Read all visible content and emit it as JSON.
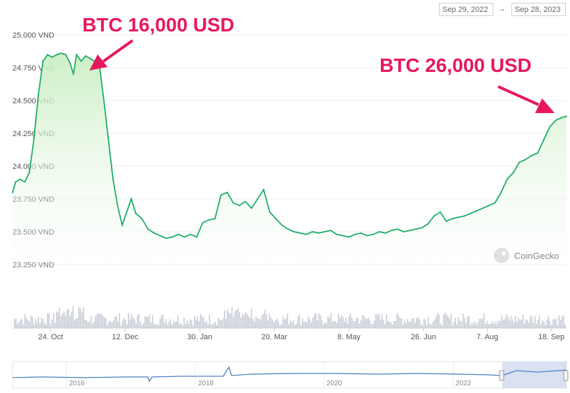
{
  "range": {
    "from": "Sep 29, 2022",
    "arrow": "→",
    "to": "Sep 28, 2023"
  },
  "watermark": "CoinGecko",
  "annotations": [
    {
      "text": "BTC 16,000 USD",
      "color": "#e8175d"
    },
    {
      "text": "BTC 26,000 USD",
      "color": "#e8175d"
    }
  ],
  "navigator": {
    "labels": [
      "2016",
      "2018",
      "2020",
      "2022"
    ]
  },
  "colors": {
    "line": "#1fad6a",
    "area_top": "#c9eec2",
    "volume": "#c9ccd6",
    "navigator_line": "#4a7fc1"
  },
  "chart_data": {
    "type": "area",
    "ylim": [
      23250,
      25000
    ],
    "y_ticks": [
      {
        "value": 25000,
        "label": "25.000 VND"
      },
      {
        "value": 24750,
        "label": "24.750 VND"
      },
      {
        "value": 24500,
        "label": "24.500 VND"
      },
      {
        "value": 24250,
        "label": "24.250 VND"
      },
      {
        "value": 24000,
        "label": "24.000 VND"
      },
      {
        "value": 23750,
        "label": "23.750 VND"
      },
      {
        "value": 23500,
        "label": "23.500 VND"
      },
      {
        "value": 23250,
        "label": "23.250 VND"
      }
    ],
    "x_ticks": [
      {
        "date": "2022-10-24",
        "label": "24. Oct"
      },
      {
        "date": "2022-12-12",
        "label": "12. Dec"
      },
      {
        "date": "2023-01-30",
        "label": "30. Jan"
      },
      {
        "date": "2023-03-20",
        "label": "20. Mar"
      },
      {
        "date": "2023-05-08",
        "label": "8. May"
      },
      {
        "date": "2023-06-26",
        "label": "26. Jun"
      },
      {
        "date": "2023-08-07",
        "label": "7. Aug"
      },
      {
        "date": "2023-09-18",
        "label": "18. Sep"
      }
    ],
    "series": [
      {
        "x": [
          "2022-09-29",
          "2022-10-01",
          "2022-10-04",
          "2022-10-07",
          "2022-10-10",
          "2022-10-13",
          "2022-10-16",
          "2022-10-19",
          "2022-10-22",
          "2022-10-25",
          "2022-10-28",
          "2022-10-31",
          "2022-11-03",
          "2022-11-06",
          "2022-11-08",
          "2022-11-10",
          "2022-11-13",
          "2022-11-16",
          "2022-11-19",
          "2022-11-22",
          "2022-11-25",
          "2022-11-28",
          "2022-12-01",
          "2022-12-04",
          "2022-12-07",
          "2022-12-10",
          "2022-12-13",
          "2022-12-16",
          "2022-12-19",
          "2022-12-23",
          "2022-12-27",
          "2022-12-31",
          "2023-01-04",
          "2023-01-08",
          "2023-01-12",
          "2023-01-16",
          "2023-01-20",
          "2023-01-24",
          "2023-01-28",
          "2023-02-01",
          "2023-02-05",
          "2023-02-09",
          "2023-02-13",
          "2023-02-17",
          "2023-02-21",
          "2023-02-25",
          "2023-03-01",
          "2023-03-05",
          "2023-03-09",
          "2023-03-13",
          "2023-03-17",
          "2023-03-21",
          "2023-03-25",
          "2023-03-29",
          "2023-04-02",
          "2023-04-06",
          "2023-04-10",
          "2023-04-14",
          "2023-04-18",
          "2023-04-22",
          "2023-04-26",
          "2023-04-30",
          "2023-05-04",
          "2023-05-08",
          "2023-05-12",
          "2023-05-16",
          "2023-05-20",
          "2023-05-24",
          "2023-05-28",
          "2023-06-01",
          "2023-06-05",
          "2023-06-09",
          "2023-06-13",
          "2023-06-17",
          "2023-06-21",
          "2023-06-25",
          "2023-06-29",
          "2023-07-03",
          "2023-07-07",
          "2023-07-11",
          "2023-07-15",
          "2023-07-19",
          "2023-07-23",
          "2023-07-27",
          "2023-07-31",
          "2023-08-04",
          "2023-08-08",
          "2023-08-12",
          "2023-08-16",
          "2023-08-20",
          "2023-08-24",
          "2023-08-28",
          "2023-09-01",
          "2023-09-05",
          "2023-09-09",
          "2023-09-13",
          "2023-09-17",
          "2023-09-21",
          "2023-09-25",
          "2023-09-28"
        ],
        "values": [
          23800,
          23880,
          23900,
          23880,
          23950,
          24200,
          24550,
          24800,
          24850,
          24830,
          24850,
          24860,
          24850,
          24780,
          24700,
          24850,
          24800,
          24840,
          24820,
          24800,
          24780,
          24500,
          24200,
          23900,
          23700,
          23550,
          23650,
          23750,
          23640,
          23600,
          23520,
          23490,
          23470,
          23450,
          23460,
          23480,
          23460,
          23480,
          23460,
          23570,
          23590,
          23600,
          23780,
          23800,
          23720,
          23700,
          23730,
          23680,
          23750,
          23820,
          23650,
          23600,
          23550,
          23520,
          23500,
          23490,
          23480,
          23500,
          23490,
          23500,
          23510,
          23480,
          23470,
          23460,
          23480,
          23490,
          23470,
          23480,
          23500,
          23490,
          23510,
          23520,
          23500,
          23510,
          23520,
          23530,
          23560,
          23620,
          23650,
          23580,
          23600,
          23610,
          23620,
          23640,
          23660,
          23680,
          23700,
          23720,
          23800,
          23900,
          23950,
          24030,
          24050,
          24080,
          24100,
          24200,
          24300,
          24350,
          24370,
          24380
        ]
      }
    ]
  }
}
